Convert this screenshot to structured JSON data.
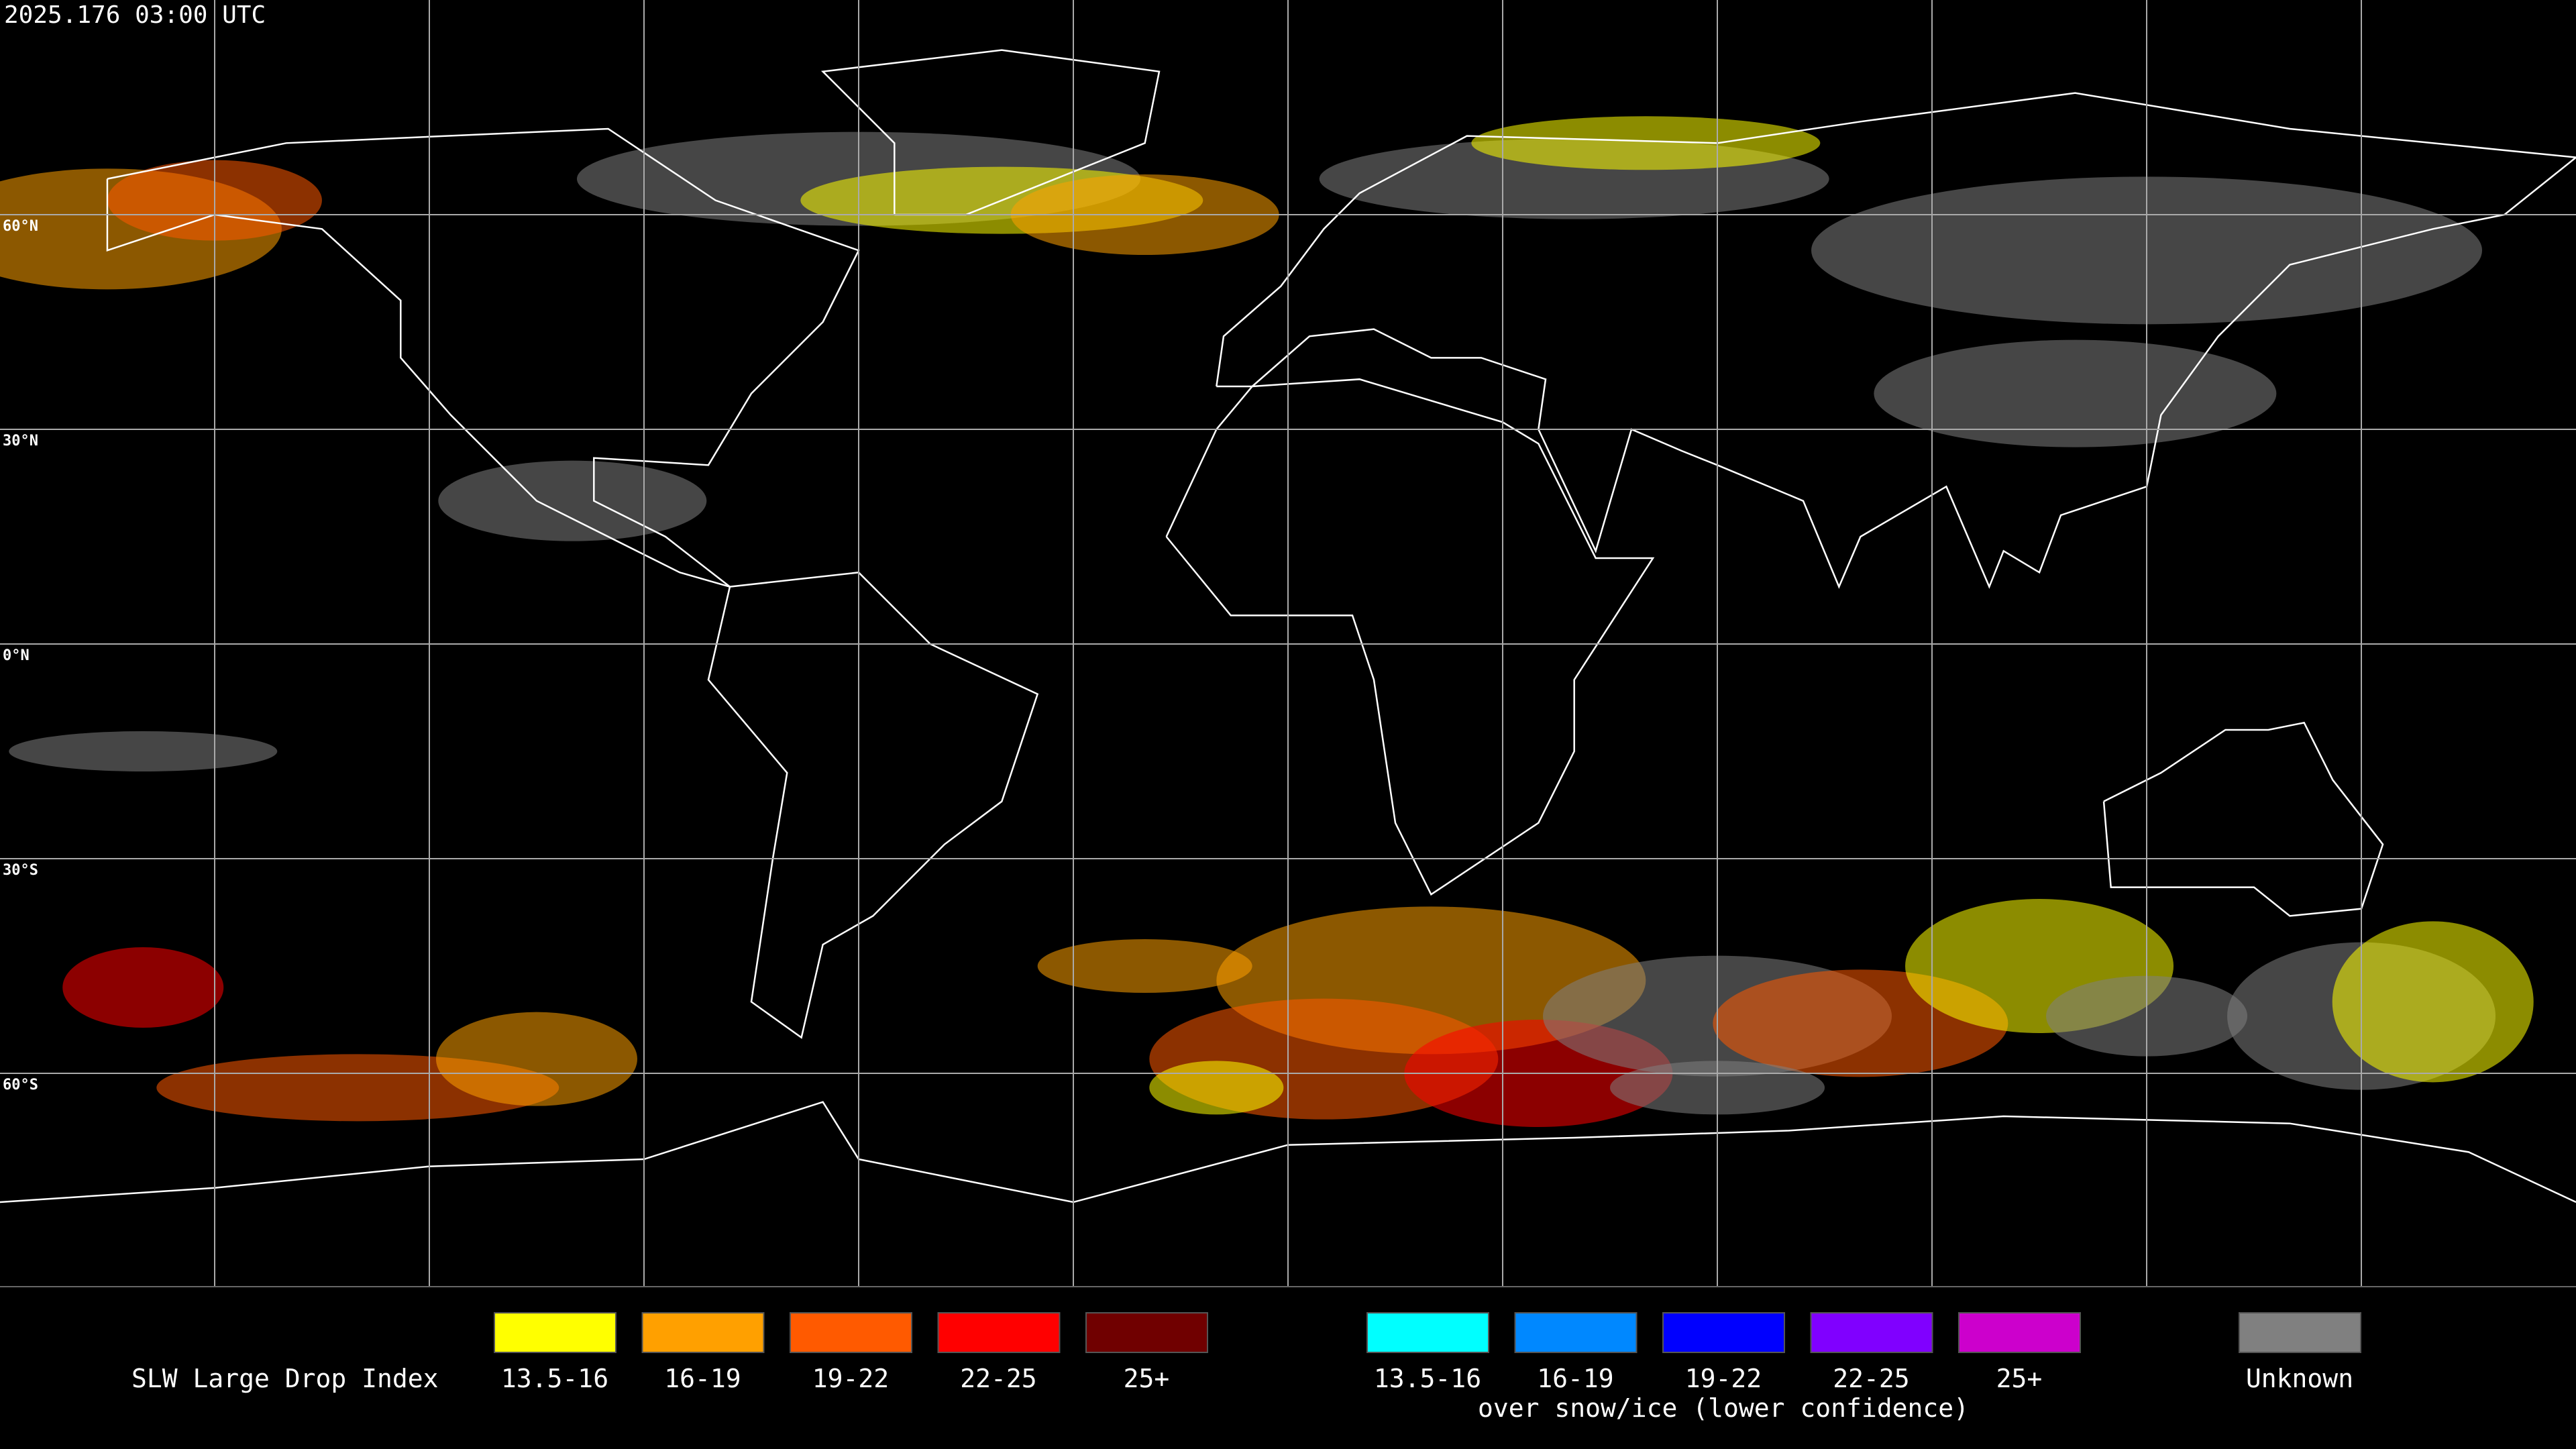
{
  "timestamp": "2025.176 03:00 UTC",
  "latitude_labels": [
    "60°N",
    "30°N",
    "0°N",
    "30°S",
    "60°S"
  ],
  "legend": {
    "title": "SLW Large Drop Index",
    "items": [
      {
        "label": "13.5-16",
        "color": "#ffff00"
      },
      {
        "label": "16-19",
        "color": "#ffa000"
      },
      {
        "label": "19-22",
        "color": "#ff5a00"
      },
      {
        "label": "22-25",
        "color": "#ff0000"
      },
      {
        "label": "25+",
        "color": "#700000"
      }
    ],
    "snow_items": [
      {
        "label": "13.5-16",
        "color": "#00ffff"
      },
      {
        "label": "16-19",
        "color": "#0088ff"
      },
      {
        "label": "19-22",
        "color": "#0000ff"
      },
      {
        "label": "22-25",
        "color": "#8000ff"
      },
      {
        "label": "25+",
        "color": "#cc00cc"
      }
    ],
    "snow_note": "over snow/ice (lower confidence)",
    "unknown": {
      "label": "Unknown",
      "color": "#808080"
    }
  }
}
